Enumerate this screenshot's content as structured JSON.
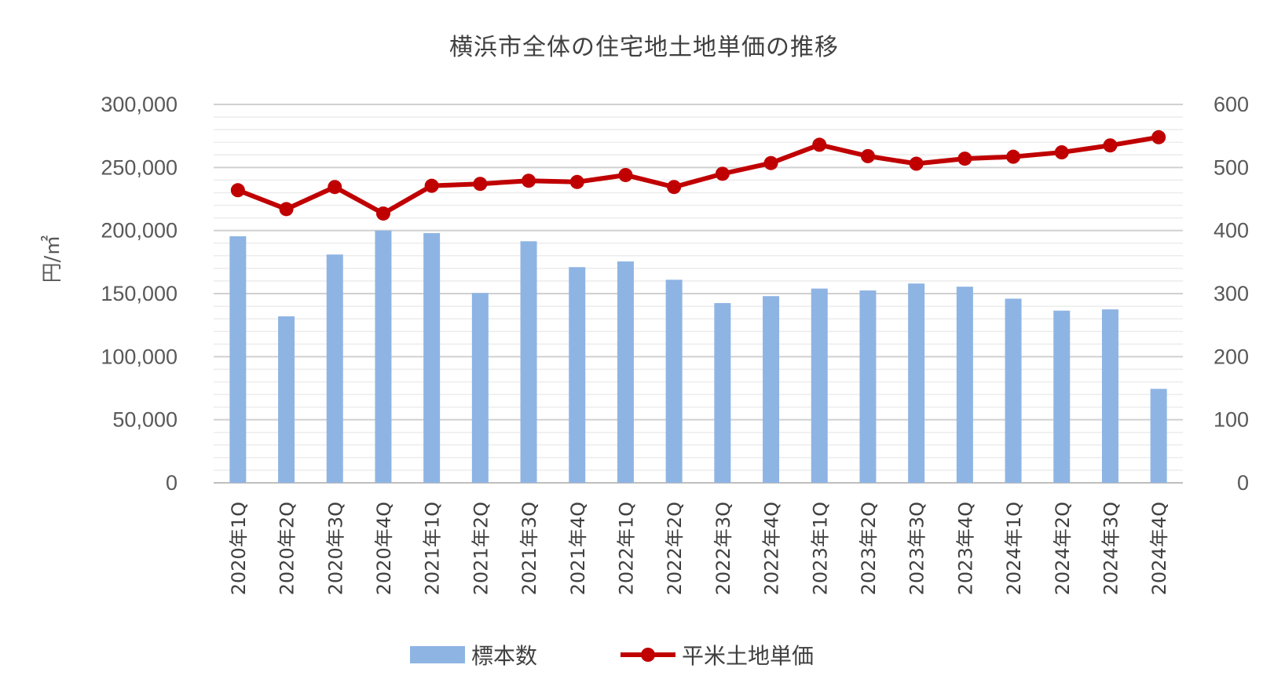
{
  "chart_data": {
    "type": "bar",
    "title": "横浜市全体の住宅地土地単価の推移",
    "ylabel": "円/㎡",
    "y2label": "",
    "ylim": [
      0,
      300000
    ],
    "y2lim": [
      0,
      600
    ],
    "yticks": [
      "0",
      "50,000",
      "100,000",
      "150,000",
      "200,000",
      "250,000",
      "300,000"
    ],
    "y2ticks": [
      "0",
      "100",
      "200",
      "300",
      "400",
      "500",
      "600"
    ],
    "categories": [
      "2020年1Q",
      "2020年2Q",
      "2020年3Q",
      "2020年4Q",
      "2021年1Q",
      "2021年2Q",
      "2021年3Q",
      "2021年4Q",
      "2022年1Q",
      "2022年2Q",
      "2022年3Q",
      "2022年4Q",
      "2023年1Q",
      "2023年2Q",
      "2023年3Q",
      "2023年4Q",
      "2024年1Q",
      "2024年2Q",
      "2024年3Q",
      "2024年4Q"
    ],
    "series": [
      {
        "name": "標本数",
        "type": "bar",
        "axis": "right",
        "color": "#8eb4e3",
        "values": [
          391,
          264,
          362,
          400,
          396,
          301,
          383,
          342,
          351,
          322,
          285,
          296,
          308,
          305,
          316,
          311,
          292,
          273,
          275,
          149
        ]
      },
      {
        "name": "平米土地単価",
        "type": "line",
        "axis": "left",
        "color": "#c00000",
        "values": [
          232000,
          217000,
          234500,
          213500,
          235500,
          237000,
          239500,
          238500,
          244000,
          234500,
          245000,
          253500,
          268000,
          259000,
          253000,
          257000,
          258500,
          262000,
          267500,
          274000
        ]
      }
    ],
    "grid": true,
    "legend": "bottom"
  }
}
